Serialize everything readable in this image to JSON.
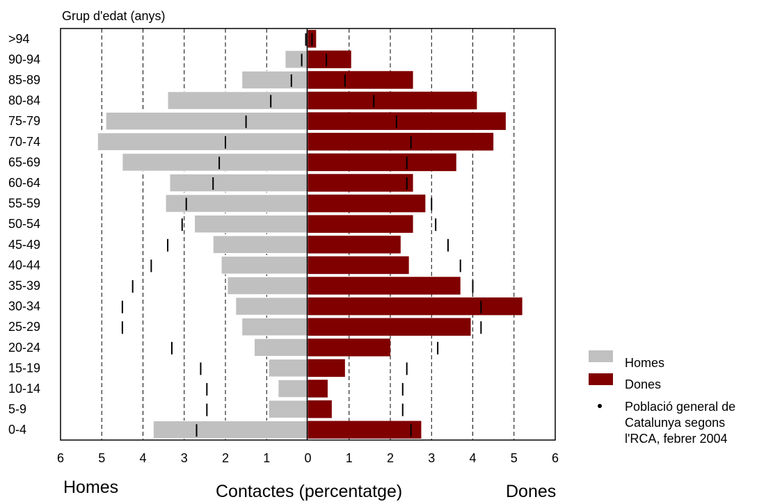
{
  "chart_data": {
    "type": "bar",
    "title": "Grup d'edat (anys)",
    "xlabel": "Contactes (percentatge)",
    "left_label": "Homes",
    "right_label": "Dones",
    "xlim": [
      -6,
      6
    ],
    "x_ticks": [
      6,
      5,
      4,
      3,
      2,
      1,
      0,
      1,
      2,
      3,
      4,
      5,
      6
    ],
    "grid": true,
    "legend_position": "right",
    "categories": [
      ">94",
      "90-94",
      "85-89",
      "80-84",
      "75-79",
      "70-74",
      "65-69",
      "60-64",
      "55-59",
      "50-54",
      "45-49",
      "40-44",
      "35-39",
      "30-34",
      "25-29",
      "20-24",
      "15-19",
      "10-14",
      "5-9",
      "0-4"
    ],
    "series": [
      {
        "name": "Homes",
        "color": "#c0c0c0",
        "values": [
          0.05,
          0.55,
          1.6,
          3.4,
          4.9,
          5.1,
          4.5,
          3.35,
          3.45,
          2.75,
          2.3,
          2.1,
          1.95,
          1.75,
          1.6,
          1.3,
          0.95,
          0.72,
          0.95,
          3.75
        ]
      },
      {
        "name": "Dones",
        "color": "#800000",
        "values": [
          0.2,
          1.05,
          2.55,
          4.1,
          4.8,
          4.5,
          3.6,
          2.55,
          2.85,
          2.55,
          2.25,
          2.45,
          3.7,
          5.2,
          3.95,
          2.0,
          0.9,
          0.48,
          0.58,
          2.75
        ]
      },
      {
        "name": "Població general de Catalunya segons l'RCA, febrer 2004",
        "homes_values": [
          0.05,
          0.15,
          0.4,
          0.9,
          1.5,
          2.0,
          2.15,
          2.3,
          2.95,
          3.05,
          3.4,
          3.8,
          4.25,
          4.5,
          4.5,
          3.3,
          2.6,
          2.45,
          2.45,
          2.7
        ],
        "dones_values": [
          0.1,
          0.45,
          0.9,
          1.6,
          2.15,
          2.5,
          2.4,
          2.4,
          3.0,
          3.1,
          3.4,
          3.7,
          4.0,
          4.2,
          4.2,
          3.15,
          2.4,
          2.3,
          2.3,
          2.5
        ]
      }
    ]
  },
  "legend": {
    "homes": "Homes",
    "dones": "Dones",
    "population_line1": "Població general de",
    "population_line2": "Catalunya segons",
    "population_line3": "l'RCA, febrer 2004"
  }
}
